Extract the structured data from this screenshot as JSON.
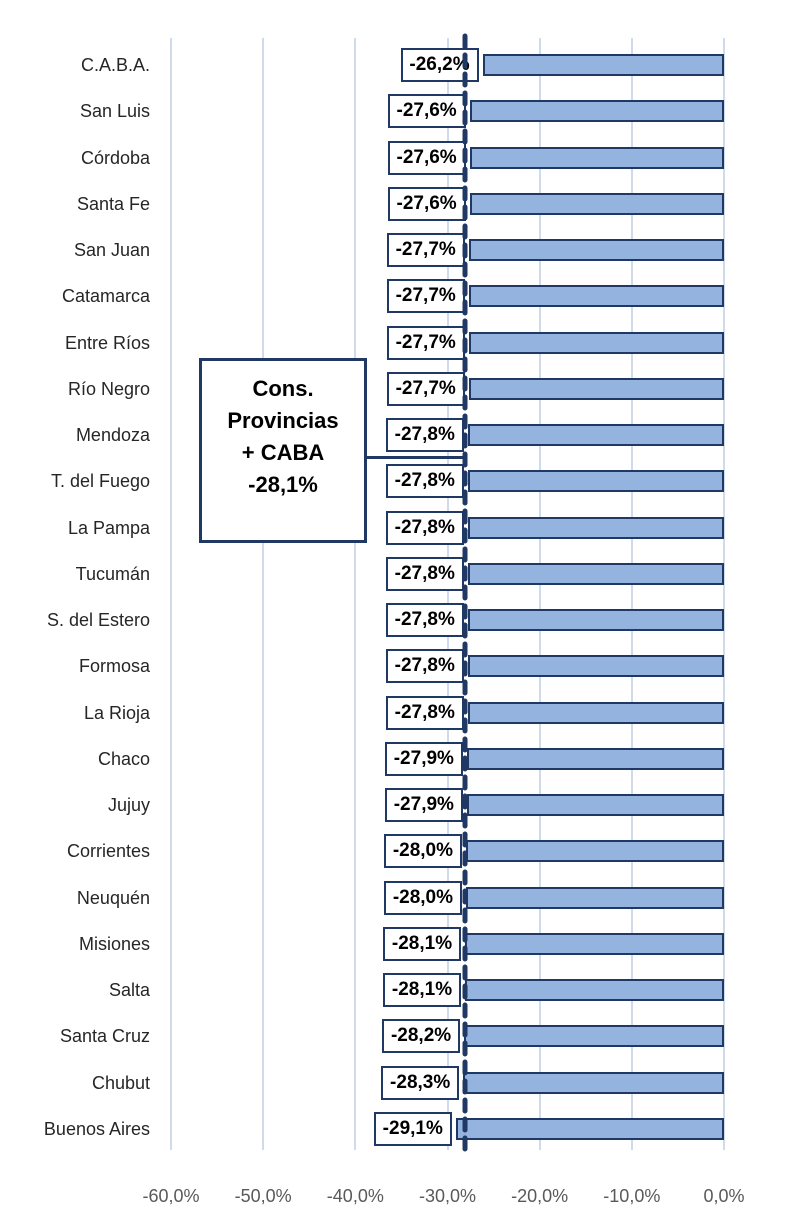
{
  "chart_data": {
    "type": "bar",
    "orientation": "horizontal",
    "title": "",
    "xlabel": "",
    "ylabel": "",
    "xlim": [
      -60,
      0
    ],
    "grid": true,
    "categories": [
      "C.A.B.A.",
      "San Luis",
      "Córdoba",
      "Santa Fe",
      "San Juan",
      "Catamarca",
      "Entre Ríos",
      "Río Negro",
      "Mendoza",
      "T. del Fuego",
      "La Pampa",
      "Tucumán",
      "S. del Estero",
      "Formosa",
      "La Rioja",
      "Chaco",
      "Jujuy",
      "Corrientes",
      "Neuquén",
      "Misiones",
      "Salta",
      "Santa Cruz",
      "Chubut",
      "Buenos Aires"
    ],
    "values": [
      -26.2,
      -27.6,
      -27.6,
      -27.6,
      -27.7,
      -27.7,
      -27.7,
      -27.7,
      -27.8,
      -27.8,
      -27.8,
      -27.8,
      -27.8,
      -27.8,
      -27.8,
      -27.9,
      -27.9,
      -28.0,
      -28.0,
      -28.1,
      -28.1,
      -28.2,
      -28.3,
      -29.1
    ],
    "value_labels": [
      "-26,2%",
      "-27,6%",
      "-27,6%",
      "-27,6%",
      "-27,7%",
      "-27,7%",
      "-27,7%",
      "-27,7%",
      "-27,8%",
      "-27,8%",
      "-27,8%",
      "-27,8%",
      "-27,8%",
      "-27,8%",
      "-27,8%",
      "-27,9%",
      "-27,9%",
      "-28,0%",
      "-28,0%",
      "-28,1%",
      "-28,1%",
      "-28,2%",
      "-28,3%",
      "-29,1%"
    ],
    "x_ticks": {
      "values": [
        -60,
        -50,
        -40,
        -30,
        -20,
        -10,
        0
      ],
      "labels": [
        "-60,0%",
        "-50,0%",
        "-40,0%",
        "-30,0%",
        "-20,0%",
        "-10,0%",
        "0,0%"
      ]
    },
    "reference_line": {
      "value": -28.1,
      "style": "dashed",
      "label": "Cons.\nProvincias\n+ CABA\n-28,1%"
    },
    "colors": {
      "bar_fill": "#95B3DF",
      "bar_border": "#1F3864",
      "gridline": "#CFDBEA",
      "dashed_line": "#1F3864",
      "value_text": "#000000",
      "category_text": "#262626",
      "axis_text": "#595959",
      "background": "#FFFFFF"
    }
  }
}
